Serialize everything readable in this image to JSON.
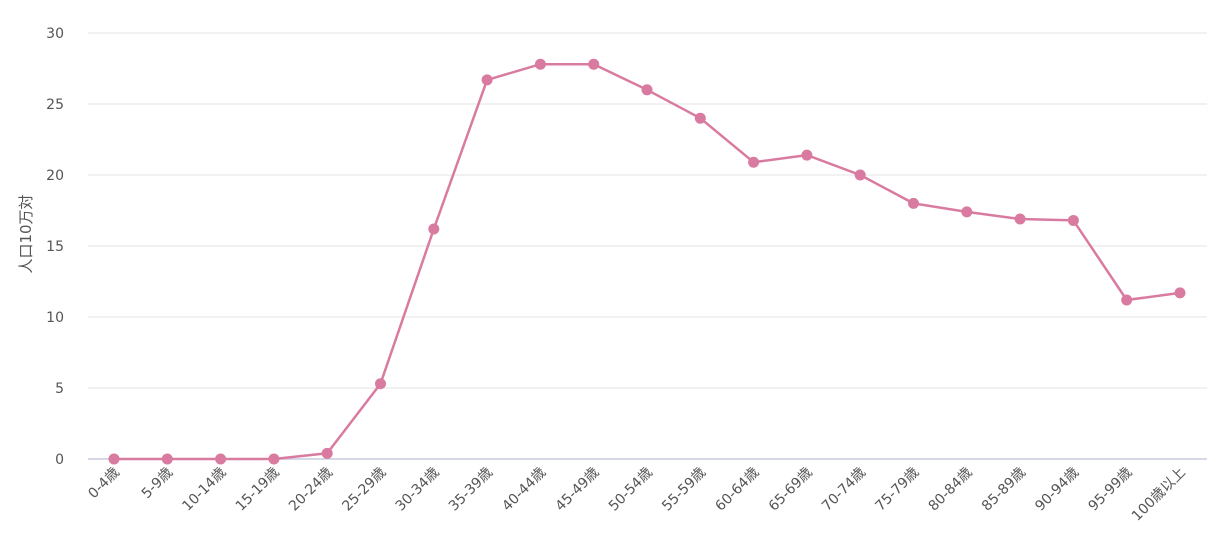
{
  "chart_data": {
    "type": "line",
    "title": "",
    "xlabel": "",
    "ylabel": "人口10万対",
    "ylim": [
      0,
      30
    ],
    "yticks": [
      0,
      5,
      10,
      15,
      20,
      25,
      30
    ],
    "grid": true,
    "legend": "none",
    "color": "#d97ba0",
    "categories": [
      "0-4歳",
      "5-9歳",
      "10-14歳",
      "15-19歳",
      "20-24歳",
      "25-29歳",
      "30-34歳",
      "35-39歳",
      "40-44歳",
      "45-49歳",
      "50-54歳",
      "55-59歳",
      "60-64歳",
      "65-69歳",
      "70-74歳",
      "75-79歳",
      "80-84歳",
      "85-89歳",
      "90-94歳",
      "95-99歳",
      "100歳以上"
    ],
    "values": [
      0.0,
      0.0,
      0.0,
      0.0,
      0.4,
      5.3,
      16.2,
      26.7,
      27.8,
      27.8,
      26.0,
      24.0,
      20.9,
      21.4,
      20.0,
      18.0,
      17.4,
      16.9,
      16.8,
      11.2,
      11.7
    ]
  }
}
